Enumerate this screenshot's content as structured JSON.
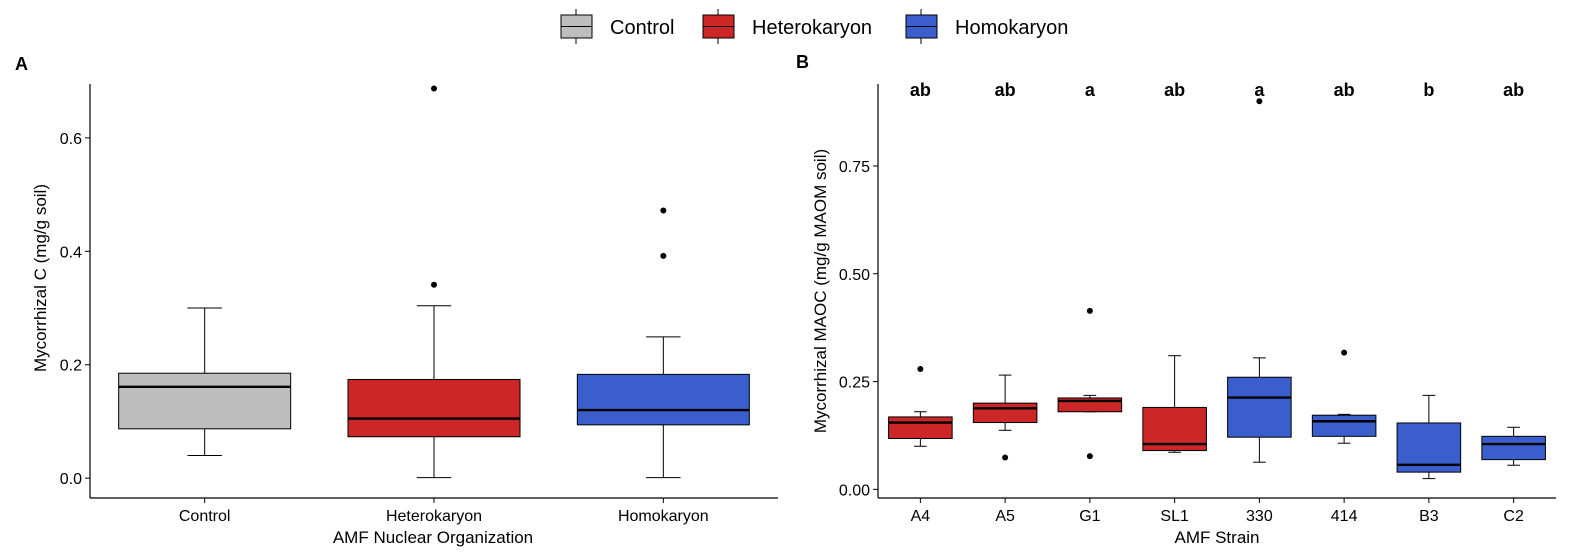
{
  "legend": {
    "items": [
      {
        "label": "Control",
        "color": "#bebebe"
      },
      {
        "label": "Heterokaryon",
        "color": "#cd2626"
      },
      {
        "label": "Homokaryon",
        "color": "#3a5fcd"
      }
    ]
  },
  "panels": {
    "a": {
      "tag": "A"
    },
    "b": {
      "tag": "B"
    }
  },
  "chart_data": [
    {
      "type": "box",
      "panel": "A",
      "xlabel": "AMF Nuclear Organization",
      "ylabel": "Mycorrhizal C (mg/g soil)",
      "ylim": [
        -0.035,
        0.695
      ],
      "yticks": [
        "0.0",
        "0.2",
        "0.4",
        "0.6"
      ],
      "ytick_values": [
        0,
        0.2,
        0.4,
        0.6
      ],
      "categories": [
        "Control",
        "Heterokaryon",
        "Homokaryon"
      ],
      "fills": [
        "#bebebe",
        "#cd2626",
        "#3a5fcd"
      ],
      "boxes": [
        {
          "whisker_low": 0.04,
          "q1": 0.087,
          "median": 0.161,
          "q3": 0.185,
          "whisker_high": 0.3,
          "outliers": []
        },
        {
          "whisker_low": 0.001,
          "q1": 0.073,
          "median": 0.105,
          "q3": 0.174,
          "whisker_high": 0.304,
          "outliers": [
            0.341,
            0.687
          ]
        },
        {
          "whisker_low": 0.001,
          "q1": 0.094,
          "median": 0.12,
          "q3": 0.183,
          "whisker_high": 0.249,
          "outliers": [
            0.392,
            0.472
          ]
        }
      ]
    },
    {
      "type": "box",
      "panel": "B",
      "xlabel": "AMF Strain",
      "ylabel": "Mycorrhizal MAOC (mg/g MAOM soil)",
      "ylim": [
        -0.02,
        0.94
      ],
      "yticks": [
        "0.00",
        "0.25",
        "0.50",
        "0.75"
      ],
      "ytick_values": [
        0,
        0.25,
        0.5,
        0.75
      ],
      "categories": [
        "A4",
        "A5",
        "G1",
        "SL1",
        "330",
        "414",
        "B3",
        "C2"
      ],
      "fills": [
        "#cd2626",
        "#cd2626",
        "#cd2626",
        "#cd2626",
        "#3a5fcd",
        "#3a5fcd",
        "#3a5fcd",
        "#3a5fcd"
      ],
      "significance_letters": [
        "ab",
        "ab",
        "a",
        "ab",
        "a",
        "ab",
        "b",
        "ab"
      ],
      "boxes": [
        {
          "whisker_low": 0.1,
          "q1": 0.118,
          "median": 0.155,
          "q3": 0.168,
          "whisker_high": 0.18,
          "outliers": [
            0.279
          ]
        },
        {
          "whisker_low": 0.137,
          "q1": 0.155,
          "median": 0.188,
          "q3": 0.2,
          "whisker_high": 0.265,
          "outliers": [
            0.074
          ]
        },
        {
          "whisker_low": 0.18,
          "q1": 0.18,
          "median": 0.205,
          "q3": 0.212,
          "whisker_high": 0.218,
          "outliers": [
            0.077,
            0.414
          ]
        },
        {
          "whisker_low": 0.086,
          "q1": 0.09,
          "median": 0.105,
          "q3": 0.19,
          "whisker_high": 0.31,
          "outliers": []
        },
        {
          "whisker_low": 0.063,
          "q1": 0.121,
          "median": 0.213,
          "q3": 0.26,
          "whisker_high": 0.305,
          "outliers": [
            0.9
          ]
        },
        {
          "whisker_low": 0.107,
          "q1": 0.123,
          "median": 0.158,
          "q3": 0.172,
          "whisker_high": 0.174,
          "outliers": [
            0.317
          ]
        },
        {
          "whisker_low": 0.025,
          "q1": 0.04,
          "median": 0.057,
          "q3": 0.154,
          "whisker_high": 0.218,
          "outliers": []
        },
        {
          "whisker_low": 0.056,
          "q1": 0.069,
          "median": 0.105,
          "q3": 0.123,
          "whisker_high": 0.144,
          "outliers": []
        }
      ]
    }
  ]
}
